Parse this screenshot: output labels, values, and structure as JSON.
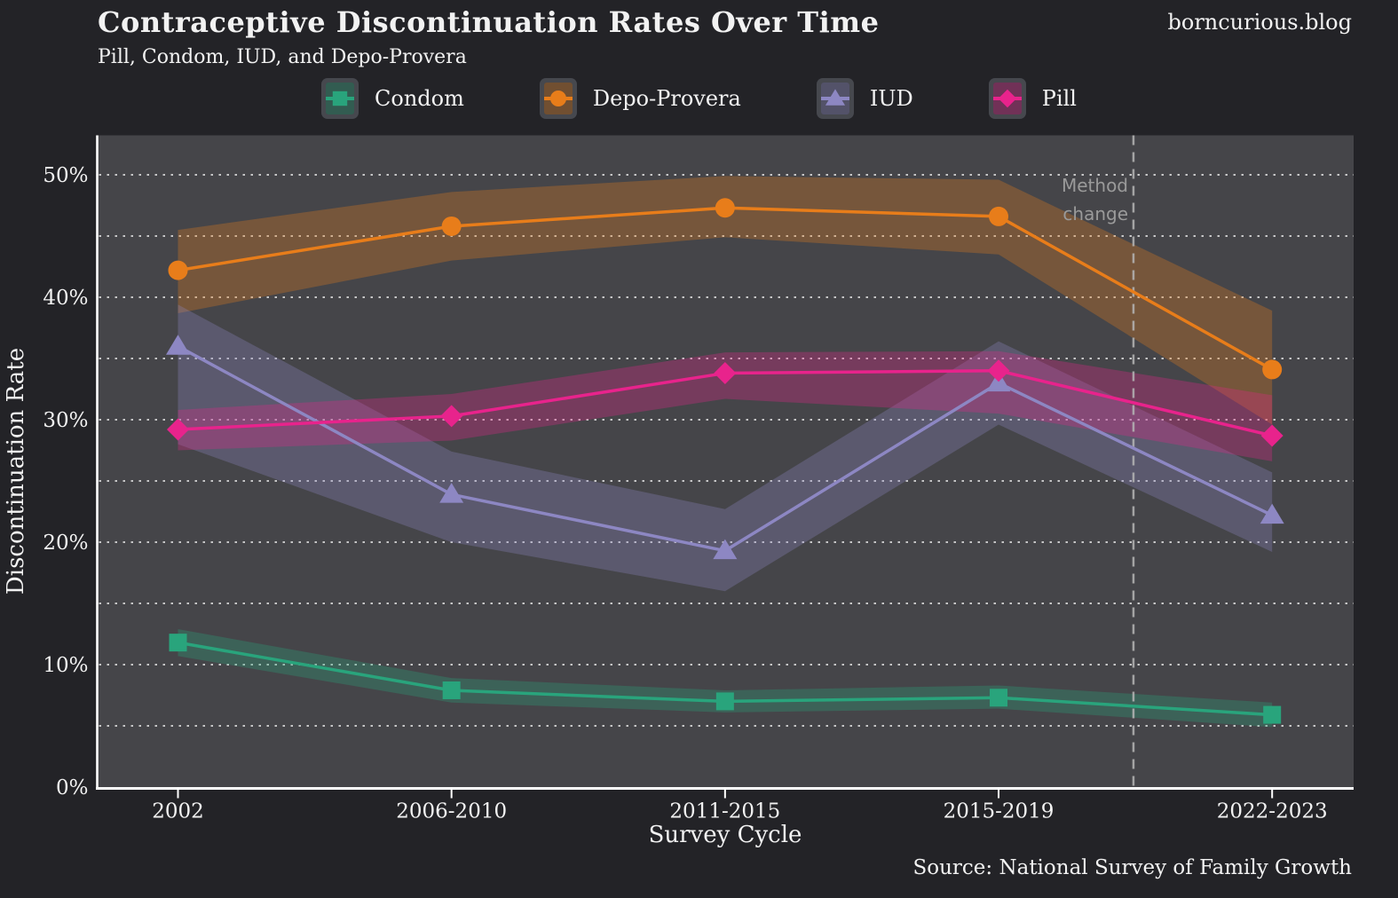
{
  "header": {
    "site": "borncurious.blog"
  },
  "footer": {
    "source": "Source: National Survey of Family Growth"
  },
  "colors": {
    "page_bg": "#232327",
    "plot_bg": "#454549",
    "grid": "#e8e8e8",
    "axis": "#ffffff",
    "text": "#f2f2f2",
    "annotation_text": "#9a9a9a",
    "annotation_line": "#b5b5b5"
  },
  "chart_data": {
    "type": "line",
    "title": "Contraceptive Discontinuation Rates Over Time",
    "subtitle": "Pill, Condom, IUD, and Depo-Provera",
    "xlabel": "Survey Cycle",
    "ylabel": "Discontinuation Rate",
    "categories": [
      "2002",
      "2006-2010",
      "2011-2015",
      "2015-2019",
      "2022-2023"
    ],
    "ylim": [
      0,
      53.3
    ],
    "yticks": [
      0,
      10,
      20,
      30,
      40,
      50
    ],
    "ytick_suffix": "%",
    "minor_grid_step": 5,
    "grid": "horizontal dotted",
    "legend_position": "top center",
    "confidence_bands": true,
    "series": [
      {
        "name": "Condom",
        "color": "#29a47c",
        "marker": "square",
        "values": [
          11.8,
          7.9,
          7.0,
          7.3,
          5.9
        ],
        "lower": [
          10.7,
          6.9,
          6.1,
          6.4,
          4.9
        ],
        "upper": [
          12.9,
          8.9,
          7.9,
          8.3,
          6.9
        ]
      },
      {
        "name": "Depo-Provera",
        "color": "#e87d1a",
        "marker": "circle",
        "values": [
          42.2,
          45.8,
          47.3,
          46.6,
          34.1
        ],
        "lower": [
          38.7,
          43.0,
          44.9,
          43.5,
          29.6
        ],
        "upper": [
          45.5,
          48.6,
          49.9,
          49.6,
          38.9
        ]
      },
      {
        "name": "IUD",
        "color": "#8d87c3",
        "marker": "triangle",
        "values": [
          36.0,
          23.9,
          19.3,
          33.0,
          22.2
        ],
        "lower": [
          28.0,
          20.0,
          16.0,
          29.6,
          19.2
        ],
        "upper": [
          39.4,
          27.4,
          22.7,
          36.4,
          25.7
        ]
      },
      {
        "name": "Pill",
        "color": "#e8238c",
        "marker": "diamond",
        "values": [
          29.2,
          30.3,
          33.8,
          34.0,
          28.7
        ],
        "lower": [
          27.5,
          28.3,
          31.7,
          30.5,
          26.6
        ],
        "upper": [
          30.8,
          32.1,
          35.5,
          35.6,
          32.0
        ]
      }
    ],
    "annotation": {
      "line1": "Method",
      "line2": "change",
      "x_index": 3.493,
      "style": "dashed vertical line"
    }
  }
}
